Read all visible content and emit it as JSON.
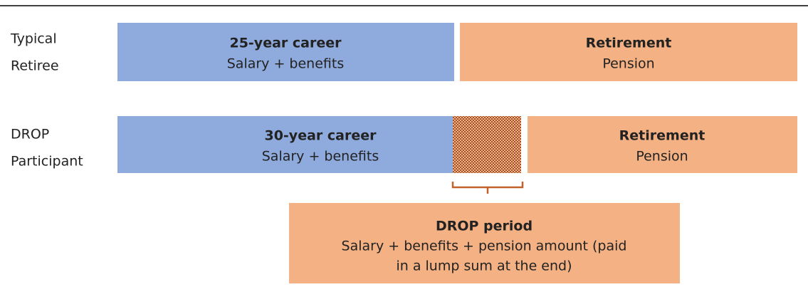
{
  "rows": [
    {
      "label": [
        "Typical",
        "Retiree"
      ],
      "career": {
        "title": "25-year career",
        "subtitle": "Salary + benefits"
      },
      "retirement": {
        "title": "Retirement",
        "subtitle": "Pension"
      }
    },
    {
      "label": [
        "DROP",
        "Participant"
      ],
      "career": {
        "title": "30-year career",
        "subtitle": "Salary + benefits"
      },
      "retirement": {
        "title": "Retirement",
        "subtitle": "Pension"
      }
    }
  ],
  "drop_period": {
    "title": "DROP period",
    "lines": [
      "Salary + benefits + pension amount (paid",
      "in a lump sum at the end)"
    ]
  }
}
